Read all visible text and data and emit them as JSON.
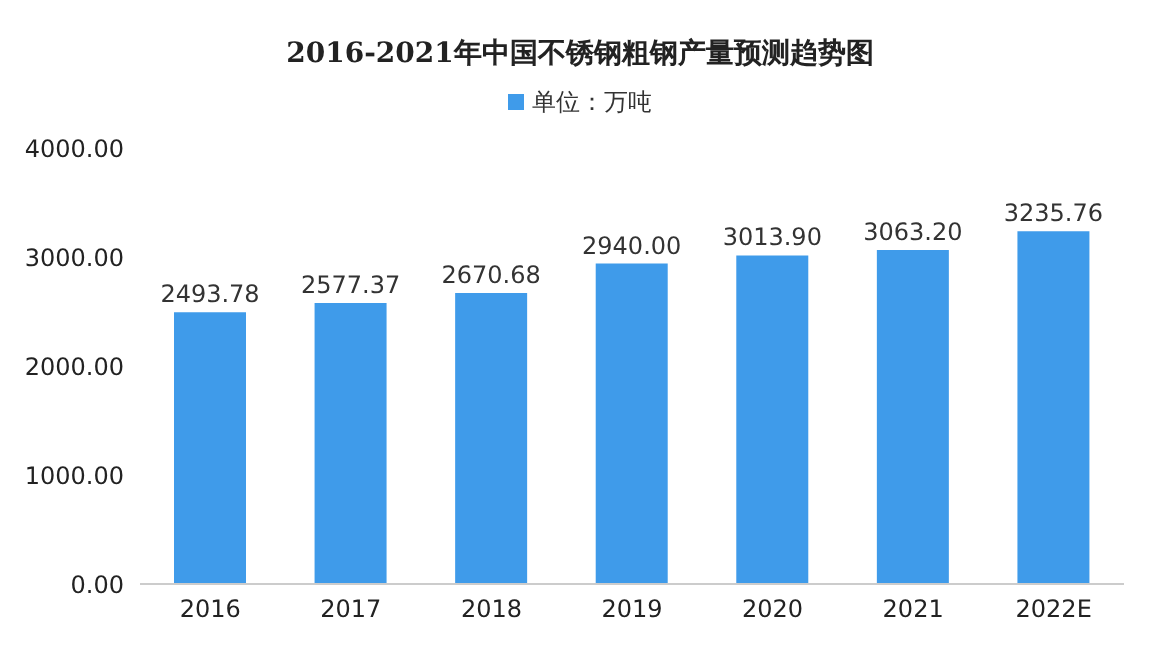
{
  "chart_data": {
    "type": "bar",
    "title": "2016-2021年中国不锈钢粗钢产量预测趋势图",
    "categories": [
      "2016",
      "2017",
      "2018",
      "2019",
      "2020",
      "2021",
      "2022E"
    ],
    "series": [
      {
        "name": "单位：万吨",
        "color": "#3f9bea",
        "values": [
          2493.78,
          2577.37,
          2670.68,
          2940.0,
          3013.9,
          3063.2,
          3235.76
        ],
        "value_labels": [
          "2493.78",
          "2577.37",
          "2670.68",
          "2940.00",
          "3013.90",
          "3063.20",
          "3235.76"
        ]
      }
    ],
    "ylim": [
      0,
      4000
    ],
    "yticks": [
      {
        "value": 0,
        "label": "0.00"
      },
      {
        "value": 1000,
        "label": "1000.00"
      },
      {
        "value": 2000,
        "label": "2000.00"
      },
      {
        "value": 3000,
        "label": "3000.00"
      },
      {
        "value": 4000,
        "label": "4000.00"
      }
    ],
    "grid": false,
    "legend": "top"
  }
}
